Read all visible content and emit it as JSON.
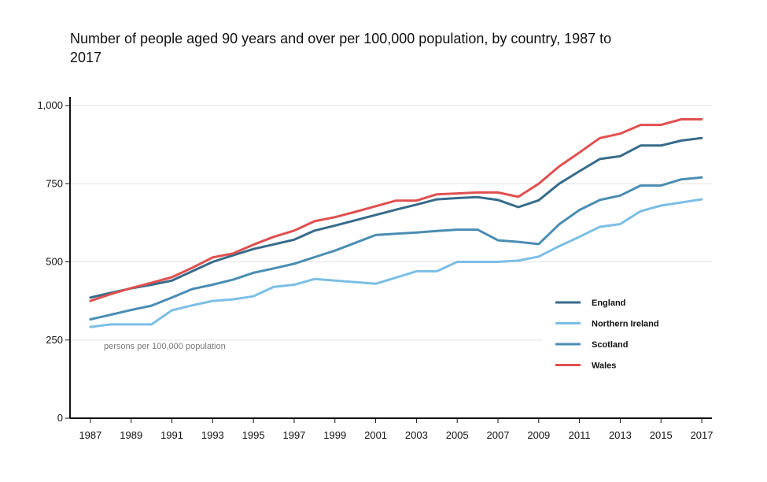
{
  "chart_data": {
    "type": "line",
    "title": "Number of people aged 90 years and over per 100,000 population, by country, 1987 to 2017",
    "ylabel": "persons per 100,000 population",
    "xlabel": "",
    "ylim": [
      0,
      1000
    ],
    "xlim": [
      1986,
      2017.5
    ],
    "yticks": [
      0,
      250,
      500,
      750,
      1000
    ],
    "ytick_labels": [
      "0",
      "250",
      "500",
      "750",
      "1,000"
    ],
    "xticks": [
      1987,
      1989,
      1991,
      1993,
      1995,
      1997,
      1999,
      2001,
      2003,
      2005,
      2007,
      2009,
      2011,
      2013,
      2015,
      2017
    ],
    "xtick_labels": [
      "1987",
      "1989",
      "1991",
      "1993",
      "1995",
      "1997",
      "1999",
      "2001",
      "2003",
      "2005",
      "2007",
      "2009",
      "2011",
      "2013",
      "2015",
      "2017"
    ],
    "grid": true,
    "legend_position": "right",
    "x": [
      1987,
      1988,
      1989,
      1990,
      1991,
      1992,
      1993,
      1994,
      1995,
      1996,
      1997,
      1998,
      1999,
      2000,
      2001,
      2002,
      2003,
      2004,
      2005,
      2006,
      2007,
      2008,
      2009,
      2010,
      2011,
      2012,
      2013,
      2014,
      2015,
      2016,
      2017
    ],
    "series": [
      {
        "name": "England",
        "color": "#376b8a",
        "values": [
          386,
          401,
          415,
          427,
          440,
          470,
          500,
          521,
          541,
          556,
          571,
          600,
          616,
          633,
          650,
          667,
          683,
          700,
          704,
          707,
          698,
          675,
          697,
          750,
          790,
          829,
          838,
          872,
          872,
          888,
          896
        ]
      },
      {
        "name": "Northern Ireland",
        "color": "#7bbfe6",
        "values": [
          292,
          300,
          300,
          300,
          345,
          361,
          375,
          380,
          390,
          420,
          427,
          445,
          440,
          435,
          430,
          450,
          470,
          470,
          500,
          500,
          500,
          504,
          517,
          550,
          580,
          612,
          621,
          662,
          680,
          690,
          700
        ]
      },
      {
        "name": "Scotland",
        "color": "#4a8db3",
        "values": [
          316,
          331,
          346,
          360,
          386,
          413,
          427,
          443,
          465,
          479,
          494,
          515,
          536,
          561,
          586,
          590,
          594,
          599,
          603,
          603,
          569,
          564,
          557,
          620,
          666,
          698,
          712,
          744,
          744,
          764,
          770
        ]
      },
      {
        "name": "Wales",
        "color": "#e05050",
        "values": [
          375,
          397,
          416,
          433,
          451,
          481,
          514,
          527,
          555,
          580,
          600,
          630,
          643,
          660,
          678,
          696,
          696,
          716,
          719,
          722,
          722,
          708,
          750,
          805,
          850,
          896,
          910,
          938,
          938,
          956,
          956
        ]
      }
    ]
  }
}
